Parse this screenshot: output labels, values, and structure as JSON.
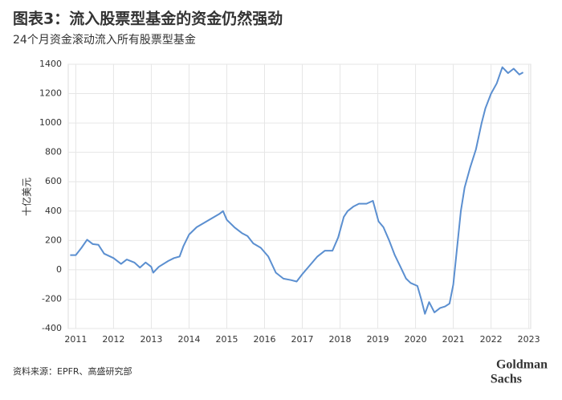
{
  "chart_data": {
    "type": "line",
    "title": "图表3：流入股票型基金的资金仍然强劲",
    "subtitle": "24个月资金滚动流入所有股票型基金",
    "y_label": "十亿美元",
    "x": [
      2010.85,
      2011.0,
      2011.15,
      2011.3,
      2011.45,
      2011.6,
      2011.75,
      2012.0,
      2012.2,
      2012.35,
      2012.55,
      2012.7,
      2012.85,
      2013.0,
      2013.05,
      2013.2,
      2013.45,
      2013.6,
      2013.75,
      2013.85,
      2014.0,
      2014.2,
      2014.4,
      2014.6,
      2014.8,
      2014.9,
      2015.0,
      2015.2,
      2015.4,
      2015.55,
      2015.7,
      2015.9,
      2016.1,
      2016.3,
      2016.5,
      2016.7,
      2016.85,
      2017.0,
      2017.2,
      2017.4,
      2017.6,
      2017.8,
      2017.95,
      2018.1,
      2018.2,
      2018.35,
      2018.5,
      2018.7,
      2018.87,
      2019.02,
      2019.15,
      2019.3,
      2019.45,
      2019.6,
      2019.75,
      2019.87,
      2020.05,
      2020.15,
      2020.25,
      2020.36,
      2020.5,
      2020.65,
      2020.78,
      2020.9,
      2021.0,
      2021.1,
      2021.2,
      2021.3,
      2021.45,
      2021.6,
      2021.75,
      2021.85,
      2022.0,
      2022.15,
      2022.3,
      2022.45,
      2022.6,
      2022.75,
      2022.85
    ],
    "series": [
      {
        "color": "#5b8fd0",
        "values": [
          100,
          100,
          150,
          205,
          175,
          170,
          110,
          80,
          40,
          70,
          50,
          15,
          50,
          20,
          -20,
          20,
          60,
          80,
          90,
          160,
          240,
          290,
          320,
          350,
          380,
          400,
          340,
          290,
          250,
          230,
          180,
          150,
          90,
          -20,
          -60,
          -70,
          -80,
          -30,
          30,
          90,
          130,
          130,
          220,
          360,
          400,
          430,
          450,
          450,
          470,
          330,
          290,
          200,
          100,
          20,
          -60,
          -90,
          -110,
          -200,
          -300,
          -220,
          -290,
          -260,
          -250,
          -230,
          -100,
          150,
          400,
          560,
          700,
          820,
          1000,
          1100,
          1200,
          1270,
          1380,
          1340,
          1370,
          1330,
          1345
        ]
      }
    ],
    "xlim": [
      2010.8,
      2023.05
    ],
    "xticks": [
      2011,
      2012,
      2013,
      2014,
      2015,
      2016,
      2017,
      2018,
      2019,
      2020,
      2021,
      2022,
      2023
    ],
    "ylim": [
      -400,
      1400
    ],
    "yticks": [
      -400,
      -200,
      0,
      200,
      400,
      600,
      800,
      1000,
      1200,
      1400
    ],
    "grid": true
  },
  "footer": {
    "source": "资料来源：EPFR、高盛研究部",
    "logo": [
      "Goldman",
      "Sachs"
    ]
  }
}
